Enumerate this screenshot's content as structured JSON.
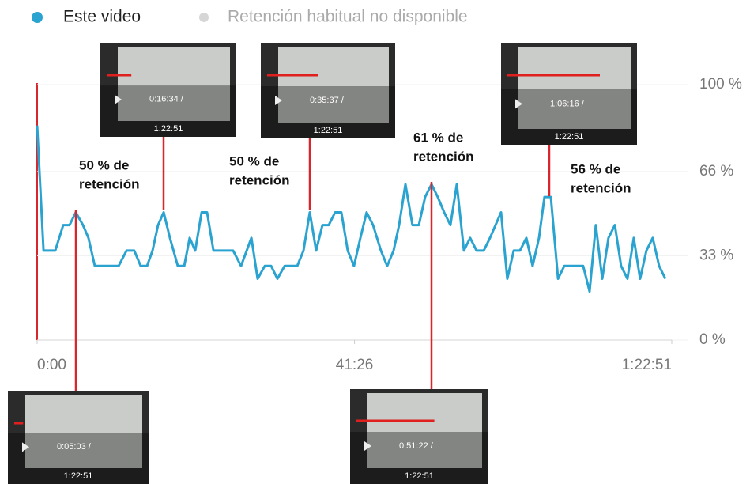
{
  "chart_data": {
    "type": "line",
    "series": [
      {
        "name": "Este video",
        "color": "#2aa3d0",
        "x": [
          0,
          50,
          142,
          204,
          254,
          303,
          359,
          402,
          452,
          514,
          638,
          700,
          761,
          811,
          861,
          904,
          947,
          991,
          1040,
          1102,
          1152,
          1195,
          1238,
          1288,
          1331,
          1381,
          1443,
          1535,
          1597,
          1678,
          1727,
          1783,
          1833,
          1882,
          1938,
          2037,
          2086,
          2136,
          2185,
          2235,
          2284,
          2334,
          2383,
          2433,
          2482,
          2532,
          2581,
          2631,
          2693,
          2742,
          2792,
          2835,
          2885,
          2940,
          2990,
          3039,
          3089,
          3138,
          3188,
          3237,
          3287,
          3343,
          3392,
          3442,
          3498,
          3547,
          3634,
          3683,
          3733,
          3782,
          3832,
          3881,
          3931,
          3974,
          4024,
          4080,
          4129,
          4178,
          4277,
          4327,
          4376,
          4426,
          4475,
          4525,
          4574,
          4624,
          4673,
          4723,
          4772,
          4822,
          4872,
          4921
        ],
        "values": [
          84,
          35,
          35,
          45,
          45,
          50,
          45,
          40,
          29,
          29,
          29,
          35,
          35,
          29,
          29,
          35,
          45,
          50,
          40,
          29,
          29,
          40,
          35,
          50,
          50,
          35,
          35,
          35,
          29,
          40,
          24,
          29,
          29,
          24,
          29,
          29,
          35,
          50,
          35,
          45,
          45,
          50,
          50,
          35,
          29,
          40,
          50,
          45,
          35,
          29,
          35,
          45,
          61,
          45,
          45,
          56,
          61,
          56,
          50,
          45,
          61,
          35,
          40,
          35,
          35,
          40,
          50,
          24,
          35,
          35,
          40,
          29,
          40,
          56,
          56,
          24,
          29,
          29,
          29,
          19,
          45,
          24,
          40,
          45,
          29,
          24,
          40,
          24,
          35,
          40,
          29,
          24
        ]
      }
    ],
    "legend_extra": {
      "name": "Retención habitual no disponible",
      "color": "#d6d6d6"
    },
    "xlim": [
      0,
      4971
    ],
    "xticks": [
      {
        "value": 0,
        "label": "0:00"
      },
      {
        "value": 2486,
        "label": "41:26"
      },
      {
        "value": 4971,
        "label": "1:22:51"
      }
    ],
    "ylim": [
      0,
      100
    ],
    "yticks": [
      {
        "value": 0,
        "label": "0 %"
      },
      {
        "value": 33,
        "label": "33 %"
      },
      {
        "value": 66,
        "label": "66 %"
      },
      {
        "value": 100,
        "label": "100 %"
      }
    ],
    "grid": true,
    "annotations": [
      {
        "lines": [
          "50 % de",
          "retención"
        ]
      },
      {
        "lines": [
          "50 % de",
          "retención"
        ]
      },
      {
        "lines": [
          "61 % de",
          "retención"
        ]
      },
      {
        "lines": [
          "56 % de",
          "retención"
        ]
      }
    ],
    "thumbnails": [
      {
        "time": "0:16:34 /",
        "duration": "1:22:51"
      },
      {
        "time": "0:35:37 /",
        "duration": "1:22:51"
      },
      {
        "time": "1:06:16 /",
        "duration": "1:22:51"
      },
      {
        "time": "0:05:03 /",
        "duration": "1:22:51"
      },
      {
        "time": "0:51:22 /",
        "duration": "1:22:51"
      }
    ]
  }
}
